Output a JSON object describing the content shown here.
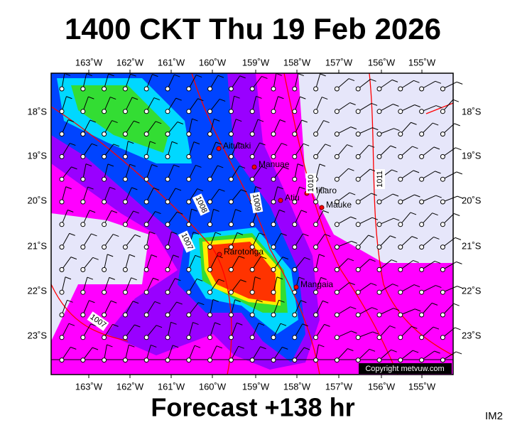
{
  "title": "1400 CKT Thu 19 Feb 2026",
  "footer": "Forecast +138 hr",
  "image_id": "IM2",
  "copyright": "Copyright metvuw.com",
  "longitude_labels": [
    "163˚W",
    "162˚W",
    "161˚W",
    "160˚W",
    "159˚W",
    "158˚W",
    "157˚W",
    "156˚W",
    "155˚W"
  ],
  "latitude_labels": [
    "18˚S",
    "19˚S",
    "20˚S",
    "21˚S",
    "22˚S",
    "23˚S"
  ],
  "places": [
    "Aitutaki",
    "Manuae",
    "Atiu",
    "Mitiaro",
    "Mauke",
    "Rarotonga",
    "Mangaia"
  ],
  "isobar_labels": [
    "1008",
    "1009",
    "1007",
    "1010",
    "1011",
    "1007"
  ]
}
